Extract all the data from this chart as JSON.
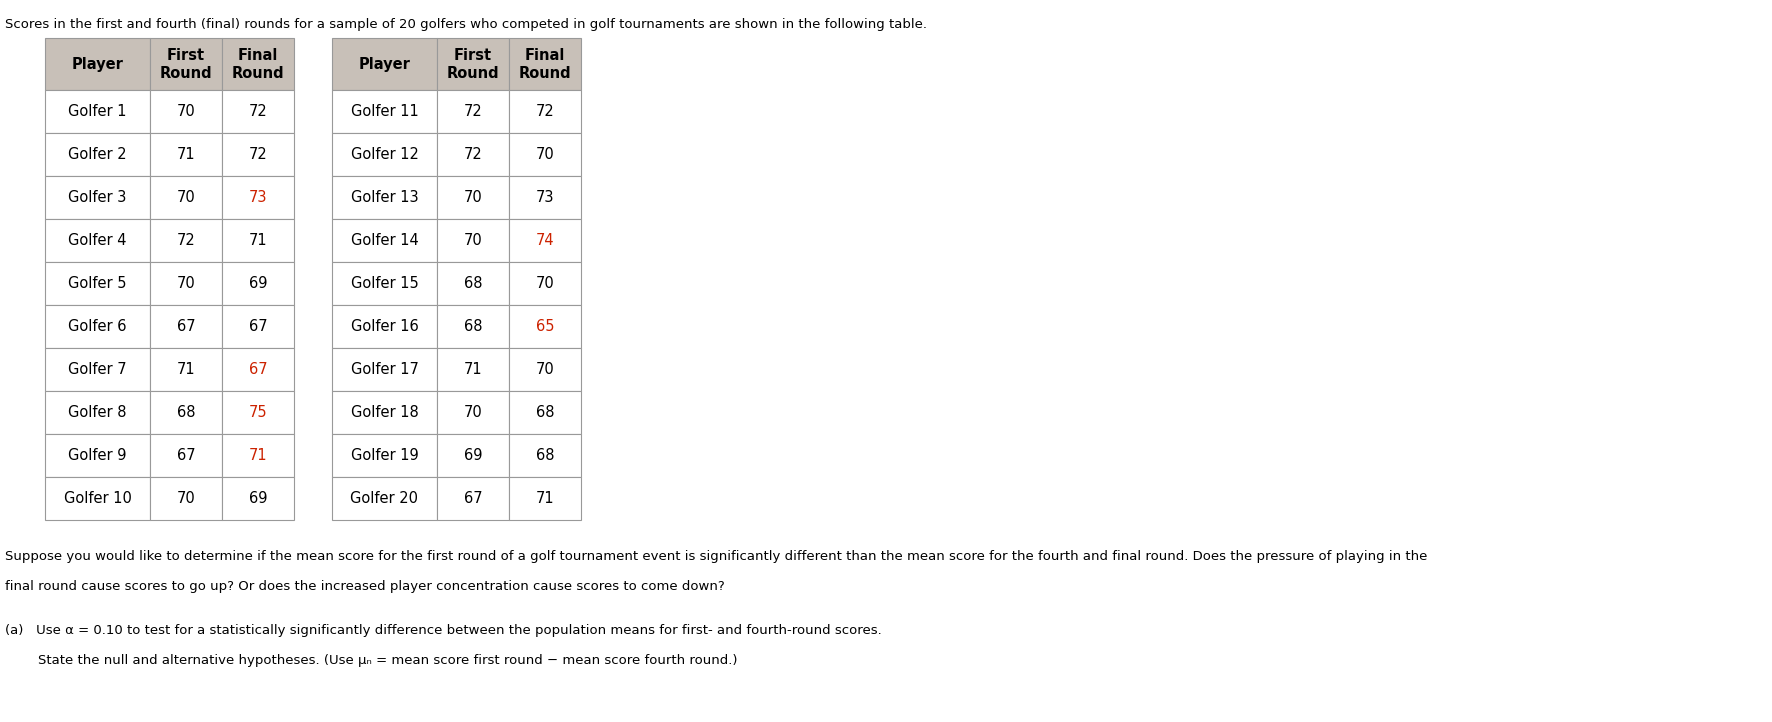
{
  "title": "Scores in the first and fourth (final) rounds for a sample of 20 golfers who competed in golf tournaments are shown in the following table.",
  "left_table": [
    [
      "Golfer 1",
      "70",
      "72"
    ],
    [
      "Golfer 2",
      "71",
      "72"
    ],
    [
      "Golfer 3",
      "70",
      "73"
    ],
    [
      "Golfer 4",
      "72",
      "71"
    ],
    [
      "Golfer 5",
      "70",
      "69"
    ],
    [
      "Golfer 6",
      "67",
      "67"
    ],
    [
      "Golfer 7",
      "71",
      "67"
    ],
    [
      "Golfer 8",
      "68",
      "75"
    ],
    [
      "Golfer 9",
      "67",
      "71"
    ],
    [
      "Golfer 10",
      "70",
      "69"
    ]
  ],
  "left_final_colors": [
    "#000000",
    "#000000",
    "#cc2200",
    "#000000",
    "#000000",
    "#000000",
    "#cc2200",
    "#cc2200",
    "#cc2200",
    "#000000"
  ],
  "right_table": [
    [
      "Golfer 11",
      "72",
      "72"
    ],
    [
      "Golfer 12",
      "72",
      "70"
    ],
    [
      "Golfer 13",
      "70",
      "73"
    ],
    [
      "Golfer 14",
      "70",
      "74"
    ],
    [
      "Golfer 15",
      "68",
      "70"
    ],
    [
      "Golfer 16",
      "68",
      "65"
    ],
    [
      "Golfer 17",
      "71",
      "70"
    ],
    [
      "Golfer 18",
      "70",
      "68"
    ],
    [
      "Golfer 19",
      "69",
      "68"
    ],
    [
      "Golfer 20",
      "67",
      "71"
    ]
  ],
  "right_final_colors": [
    "#000000",
    "#000000",
    "#000000",
    "#cc2200",
    "#000000",
    "#cc2200",
    "#000000",
    "#000000",
    "#000000",
    "#000000"
  ],
  "paragraph1": "Suppose you would like to determine if the mean score for the first round of a golf tournament event is significantly different than the mean score for the fourth and final round. Does the pressure of playing in the",
  "paragraph2": "final round cause scores to go up? Or does the increased player concentration cause scores to come down?",
  "part_a": "(a)   Use α = 0.10 to test for a statistically significantly difference between the population means for first- and fourth-round scores.",
  "part_a_state": "State the null and alternative hypotheses. (Use μₙ = mean score first round − mean score fourth round.)",
  "bg_color": "#ffffff",
  "header_bg": "#c8c0b8",
  "cell_bg": "#ffffff",
  "border_color": "#999999",
  "text_color": "#000000",
  "red_color": "#cc2200",
  "table_font_size": 10.5,
  "header_font_size": 10.5,
  "body_font_size": 9.5,
  "title_font_size": 9.5
}
